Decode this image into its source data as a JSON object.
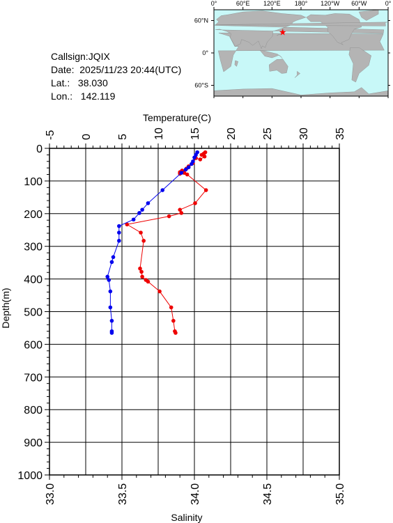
{
  "station": {
    "callsign": "Callsign:JQIX",
    "date": "Date:  2025/11/23 20:44(UTC)",
    "lat": "Lat.:   38.030",
    "lon": "Lon.:   142.119"
  },
  "map": {
    "top_labels": [
      "0°",
      "60°E",
      "120°E",
      "180°",
      "120°W",
      "60°W",
      "0°"
    ],
    "left_labels": [
      "60°N",
      "0°",
      "60°S"
    ],
    "ocean_color": "#c8f8f8",
    "land_color": "#b4b4b4",
    "marker_color": "#ff0000",
    "marker": {
      "lon": 142.119,
      "lat": 38.03
    }
  },
  "chart_data": {
    "type": "line",
    "ylabel": "Depth(m)",
    "ylim": [
      1000,
      0
    ],
    "yticks": [
      "0",
      "100",
      "200",
      "300",
      "400",
      "500",
      "600",
      "700",
      "800",
      "900",
      "1000"
    ],
    "top_axis": {
      "label": "Temperature(C)",
      "range": [
        -5,
        35
      ],
      "ticks": [
        "-5",
        "0",
        "5",
        "10",
        "15",
        "20",
        "25",
        "30",
        "35"
      ]
    },
    "bottom_axis": {
      "label": "Salinity",
      "range": [
        33.0,
        35.0
      ],
      "ticks": [
        "33.0",
        "33.5",
        "34.0",
        "34.5",
        "35.0"
      ]
    },
    "grid": true,
    "series": [
      {
        "axis": "top",
        "color": "#ee0000",
        "points": [
          [
            16.5,
            12
          ],
          [
            16.3,
            16
          ],
          [
            16.0,
            20
          ],
          [
            16.4,
            25
          ],
          [
            15.8,
            34
          ],
          [
            15.2,
            30
          ],
          [
            14.8,
            45
          ],
          [
            14.2,
            55
          ],
          [
            13.9,
            62
          ],
          [
            13.3,
            68
          ],
          [
            13.0,
            73
          ],
          [
            13.6,
            75
          ],
          [
            13.0,
            78
          ],
          [
            14.0,
            80
          ],
          [
            16.6,
            128
          ],
          [
            15.1,
            168
          ],
          [
            13.0,
            188
          ],
          [
            13.2,
            198
          ],
          [
            11.5,
            208
          ],
          [
            5.7,
            233
          ],
          [
            7.6,
            258
          ],
          [
            8.0,
            283
          ],
          [
            7.5,
            368
          ],
          [
            7.7,
            378
          ],
          [
            7.8,
            393
          ],
          [
            8.3,
            403
          ],
          [
            8.6,
            408
          ],
          [
            10.2,
            438
          ],
          [
            11.8,
            487
          ],
          [
            12.1,
            528
          ],
          [
            12.3,
            560
          ],
          [
            12.4,
            565
          ]
        ]
      },
      {
        "axis": "bottom",
        "color": "#0000ee",
        "points": [
          [
            34.02,
            12
          ],
          [
            34.01,
            20
          ],
          [
            34.0,
            28
          ],
          [
            33.99,
            40
          ],
          [
            33.98,
            48
          ],
          [
            33.96,
            58
          ],
          [
            33.94,
            65
          ],
          [
            33.91,
            75
          ],
          [
            33.78,
            128
          ],
          [
            33.68,
            168
          ],
          [
            33.64,
            188
          ],
          [
            33.62,
            198
          ],
          [
            33.58,
            218
          ],
          [
            33.48,
            238
          ],
          [
            33.48,
            258
          ],
          [
            33.48,
            283
          ],
          [
            33.44,
            333
          ],
          [
            33.43,
            348
          ],
          [
            33.4,
            393
          ],
          [
            33.41,
            403
          ],
          [
            33.42,
            438
          ],
          [
            33.42,
            487
          ],
          [
            33.43,
            528
          ],
          [
            33.43,
            560
          ],
          [
            33.43,
            565
          ]
        ]
      }
    ]
  }
}
